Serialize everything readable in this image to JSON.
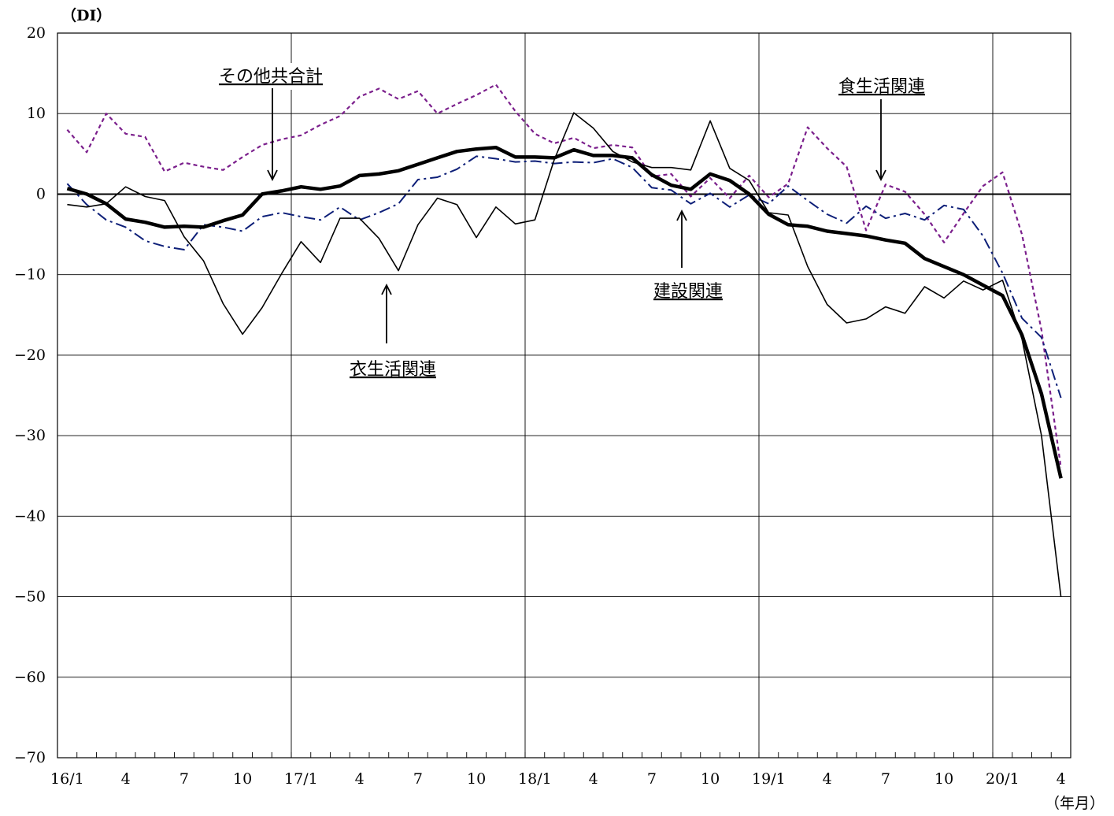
{
  "chart_data": {
    "type": "line",
    "y_unit_label": "（DI）",
    "x_unit_label": "（年月）",
    "ylim": [
      -70,
      20
    ],
    "yticks": [
      20,
      10,
      0,
      -10,
      -20,
      -30,
      -40,
      -50,
      -60,
      -70
    ],
    "ytick_labels": [
      "20",
      "10",
      "0",
      "−10",
      "−20",
      "−30",
      "−40",
      "−50",
      "−60",
      "−70"
    ],
    "grid": true,
    "months": [
      "16/1",
      "16/2",
      "16/3",
      "16/4",
      "16/5",
      "16/6",
      "16/7",
      "16/8",
      "16/9",
      "16/10",
      "16/11",
      "16/12",
      "17/1",
      "17/2",
      "17/3",
      "17/4",
      "17/5",
      "17/6",
      "17/7",
      "17/8",
      "17/9",
      "17/10",
      "17/11",
      "17/12",
      "18/1",
      "18/2",
      "18/3",
      "18/4",
      "18/5",
      "18/6",
      "18/7",
      "18/8",
      "18/9",
      "18/10",
      "18/11",
      "18/12",
      "19/1",
      "19/2",
      "19/3",
      "19/4",
      "19/5",
      "19/6",
      "19/7",
      "19/8",
      "19/9",
      "19/10",
      "19/11",
      "19/12",
      "20/1",
      "20/2",
      "20/3",
      "20/4"
    ],
    "xtick_labels": [
      {
        "i": 0,
        "label": "16/1"
      },
      {
        "i": 3,
        "label": "4"
      },
      {
        "i": 6,
        "label": "7"
      },
      {
        "i": 9,
        "label": "10"
      },
      {
        "i": 12,
        "label": "17/1"
      },
      {
        "i": 15,
        "label": "4"
      },
      {
        "i": 18,
        "label": "7"
      },
      {
        "i": 21,
        "label": "10"
      },
      {
        "i": 24,
        "label": "18/1"
      },
      {
        "i": 27,
        "label": "4"
      },
      {
        "i": 30,
        "label": "7"
      },
      {
        "i": 33,
        "label": "10"
      },
      {
        "i": 36,
        "label": "19/1"
      },
      {
        "i": 39,
        "label": "4"
      },
      {
        "i": 42,
        "label": "7"
      },
      {
        "i": 45,
        "label": "10"
      },
      {
        "i": 48,
        "label": "20/1"
      },
      {
        "i": 51,
        "label": "4"
      }
    ],
    "year_dividers": [
      12,
      24,
      36,
      48
    ],
    "series": [
      {
        "key": "total",
        "name": "その他共合計",
        "color": "#000000",
        "style": "thick",
        "values": [
          0.7,
          0,
          -1.2,
          -3.1,
          -3.5,
          -4.1,
          -4.0,
          -4.1,
          -3.3,
          -2.6,
          0,
          0.4,
          0.9,
          0.6,
          1.0,
          2.3,
          2.5,
          2.9,
          3.7,
          4.5,
          5.3,
          5.6,
          5.8,
          4.6,
          4.6,
          4.5,
          5.5,
          4.8,
          4.8,
          4.5,
          2.4,
          1.1,
          0.6,
          2.5,
          1.7,
          0,
          -2.5,
          -3.8,
          -4.0,
          -4.6,
          -4.9,
          -5.2,
          -5.7,
          -6.1,
          -8.0,
          -9.0,
          -10.0,
          -11.3,
          -12.6,
          -17.5,
          -24.8,
          -35.3
        ]
      },
      {
        "key": "apparel",
        "name": "衣生活関連",
        "color": "#000000",
        "style": "thin",
        "values": [
          -1.3,
          -1.6,
          -1.2,
          0.9,
          -0.3,
          -0.8,
          -5.3,
          -8.3,
          -13.6,
          -17.4,
          -14.1,
          -9.9,
          -5.9,
          -8.5,
          -3.0,
          -3.0,
          -5.5,
          -9.5,
          -3.8,
          -0.5,
          -1.3,
          -5.4,
          -1.6,
          -3.7,
          -3.2,
          4.3,
          10.1,
          8.2,
          5.3,
          4.0,
          3.3,
          3.3,
          3.0,
          9.1,
          3.2,
          1.7,
          -2.3,
          -2.6,
          -9.0,
          -13.7,
          -16.0,
          -15.5,
          -14.0,
          -14.8,
          -11.5,
          -12.9,
          -10.8,
          -11.9,
          -10.7,
          -18.0,
          -30.0,
          -50.0
        ]
      },
      {
        "key": "food",
        "name": "食生活関連",
        "color": "#7b1f8c",
        "style": "dashed",
        "values": [
          8.0,
          5.2,
          10.0,
          7.5,
          7.1,
          2.8,
          3.9,
          3.4,
          3.0,
          4.6,
          6.1,
          6.8,
          7.3,
          8.6,
          9.7,
          12.1,
          13.1,
          11.8,
          12.8,
          10.0,
          11.2,
          12.3,
          13.6,
          10.3,
          7.5,
          6.3,
          7.0,
          5.7,
          6.1,
          5.8,
          2.2,
          2.5,
          -0.3,
          2.0,
          -0.5,
          2.3,
          -0.4,
          1.3,
          8.3,
          5.7,
          3.4,
          -4.5,
          1.2,
          0.3,
          -2.5,
          -6.0,
          -2.4,
          1.0,
          2.7,
          -5.0,
          -16.9,
          -34.0
        ]
      },
      {
        "key": "construction",
        "name": "建設関連",
        "color": "#0d1f78",
        "style": "dashdot",
        "values": [
          1.3,
          -1.3,
          -3.2,
          -4.1,
          -5.8,
          -6.5,
          -6.9,
          -3.8,
          -4.1,
          -4.6,
          -2.8,
          -2.3,
          -2.8,
          -3.2,
          -1.6,
          -3.2,
          -2.3,
          -1.2,
          1.8,
          2.1,
          3.1,
          4.7,
          4.4,
          4.0,
          4.1,
          3.8,
          4.0,
          3.9,
          4.4,
          3.3,
          0.8,
          0.5,
          -1.2,
          0.1,
          -1.6,
          -0.1,
          -1.2,
          1.0,
          -0.8,
          -2.5,
          -3.6,
          -1.5,
          -3.0,
          -2.4,
          -3.2,
          -1.4,
          -1.9,
          -5.2,
          -9.8,
          -15.4,
          -17.8,
          -25.3
        ]
      }
    ],
    "annotations": [
      {
        "series": "total",
        "label": "その他共合計"
      },
      {
        "series": "food",
        "label": "食生活関連"
      },
      {
        "series": "construction",
        "label": "建設関連"
      },
      {
        "series": "apparel",
        "label": "衣生活関連"
      }
    ]
  }
}
